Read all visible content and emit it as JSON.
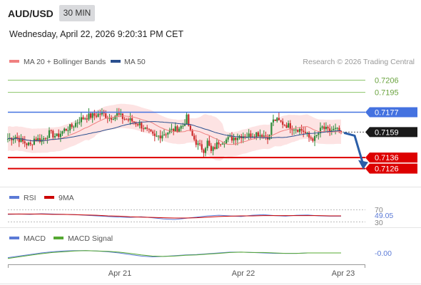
{
  "header": {
    "pair": "AUD/USD",
    "timeframe": "30 MIN",
    "datetime": "Wednesday, April 22, 2026 9:20:31 PM CET"
  },
  "colors": {
    "candle_up": "#2e8b3a",
    "candle_down": "#cc2a2a",
    "bollinger_fill": "#fde3e3",
    "ma20": "#f08080",
    "ma50": "#2a4f8f",
    "resistance_green": "#8cc56a",
    "pivot_blue": "#4472e0",
    "support_red": "#dd0000",
    "forecast_arrow": "#2a5ea8",
    "rsi_line": "#5b7ad6",
    "rsi_ma": "#cc0000",
    "macd_line": "#5b7ad6",
    "macd_signal": "#55a832"
  },
  "chart_data": [
    {
      "type": "candlestick",
      "legend": [
        "MA 20 + Bollinger Bands",
        "MA 50"
      ],
      "watermark": "Research © 2026 Trading Central",
      "x_ticks": [
        "Apr 21",
        "Apr 22",
        "Apr 23"
      ],
      "y_range": [
        0.7118,
        0.7216
      ],
      "current_price": 0.7159,
      "levels": [
        {
          "label": "0.7206",
          "value": 0.7206,
          "kind": "resistance"
        },
        {
          "label": "0.7195",
          "value": 0.7195,
          "kind": "resistance"
        },
        {
          "label": "0.7177",
          "value": 0.7177,
          "kind": "pivot"
        },
        {
          "label": "0.7159",
          "value": 0.7159,
          "kind": "last"
        },
        {
          "label": "0.7136",
          "value": 0.7136,
          "kind": "support"
        },
        {
          "label": "0.7126",
          "value": 0.7126,
          "kind": "support"
        }
      ],
      "forecast": {
        "direction": "down",
        "target": 0.7126
      },
      "anchors": [
        {
          "i": 0,
          "c": 0.7153
        },
        {
          "i": 4,
          "c": 0.7155
        },
        {
          "i": 8,
          "c": 0.715
        },
        {
          "i": 12,
          "c": 0.7147
        },
        {
          "i": 14,
          "c": 0.7153
        },
        {
          "i": 18,
          "c": 0.7152
        },
        {
          "i": 22,
          "c": 0.7158
        },
        {
          "i": 26,
          "c": 0.7155
        },
        {
          "i": 30,
          "c": 0.7161
        },
        {
          "i": 34,
          "c": 0.7164
        },
        {
          "i": 38,
          "c": 0.717
        },
        {
          "i": 42,
          "c": 0.7173
        },
        {
          "i": 46,
          "c": 0.7174
        },
        {
          "i": 50,
          "c": 0.7176
        },
        {
          "i": 54,
          "c": 0.7172
        },
        {
          "i": 58,
          "c": 0.7175
        },
        {
          "i": 62,
          "c": 0.7171
        },
        {
          "i": 66,
          "c": 0.7169
        },
        {
          "i": 70,
          "c": 0.7166
        },
        {
          "i": 74,
          "c": 0.716
        },
        {
          "i": 78,
          "c": 0.7154
        },
        {
          "i": 82,
          "c": 0.7157
        },
        {
          "i": 86,
          "c": 0.716
        },
        {
          "i": 90,
          "c": 0.7162
        },
        {
          "i": 93,
          "c": 0.7165
        },
        {
          "i": 95,
          "c": 0.7172
        },
        {
          "i": 97,
          "c": 0.7158
        },
        {
          "i": 101,
          "c": 0.7147
        },
        {
          "i": 104,
          "c": 0.7143
        },
        {
          "i": 106,
          "c": 0.715
        },
        {
          "i": 108,
          "c": 0.7141
        },
        {
          "i": 112,
          "c": 0.715
        },
        {
          "i": 116,
          "c": 0.7152
        },
        {
          "i": 120,
          "c": 0.7154
        },
        {
          "i": 124,
          "c": 0.7156
        },
        {
          "i": 128,
          "c": 0.7156
        },
        {
          "i": 132,
          "c": 0.7158
        },
        {
          "i": 136,
          "c": 0.7156
        },
        {
          "i": 139,
          "c": 0.7155
        },
        {
          "i": 140,
          "c": 0.7168
        },
        {
          "i": 142,
          "c": 0.717
        },
        {
          "i": 146,
          "c": 0.7167
        },
        {
          "i": 150,
          "c": 0.7164
        },
        {
          "i": 154,
          "c": 0.7162
        },
        {
          "i": 157,
          "c": 0.716
        },
        {
          "i": 160,
          "c": 0.7154
        },
        {
          "i": 163,
          "c": 0.7153
        },
        {
          "i": 165,
          "c": 0.7158
        },
        {
          "i": 167,
          "c": 0.7163
        },
        {
          "i": 170,
          "c": 0.716
        },
        {
          "i": 174,
          "c": 0.7161
        },
        {
          "i": 177,
          "c": 0.7159
        }
      ],
      "candles_count": 178
    },
    {
      "type": "line",
      "legend": [
        "RSI",
        "9MA"
      ],
      "y_ticks": [
        "70",
        "30"
      ],
      "value_label": "49.05",
      "rsi": [
        55,
        56,
        55,
        57,
        56,
        55,
        54,
        52,
        50,
        48,
        46,
        45,
        47,
        44,
        40,
        38,
        42,
        46,
        50,
        52,
        50,
        48,
        52,
        54,
        51,
        49,
        52,
        53,
        50,
        49,
        49
      ],
      "ma9": [
        56,
        56,
        56,
        56,
        55,
        55,
        54,
        53,
        52,
        50,
        49,
        47,
        46,
        45,
        44,
        43,
        43,
        44,
        46,
        48,
        49,
        50,
        50,
        51,
        51,
        51,
        51,
        51,
        51,
        50,
        50
      ]
    },
    {
      "type": "line",
      "legend": [
        "MACD",
        "MACD Signal"
      ],
      "value_label": "-0.00",
      "macd": [
        -12,
        -8,
        -4,
        0,
        3,
        5,
        6,
        6,
        5,
        3,
        0,
        -4,
        -8,
        -10,
        -9,
        -7,
        -5,
        -4,
        -2,
        0,
        2,
        2,
        1,
        0,
        -1,
        -1,
        -1,
        0,
        0,
        0,
        0
      ],
      "signal": [
        -14,
        -10,
        -6,
        -2,
        1,
        3,
        5,
        6,
        5,
        4,
        2,
        -1,
        -5,
        -8,
        -9,
        -8,
        -6,
        -5,
        -3,
        -1,
        1,
        2,
        1,
        1,
        0,
        -1,
        -1,
        0,
        0,
        0,
        0
      ]
    }
  ]
}
